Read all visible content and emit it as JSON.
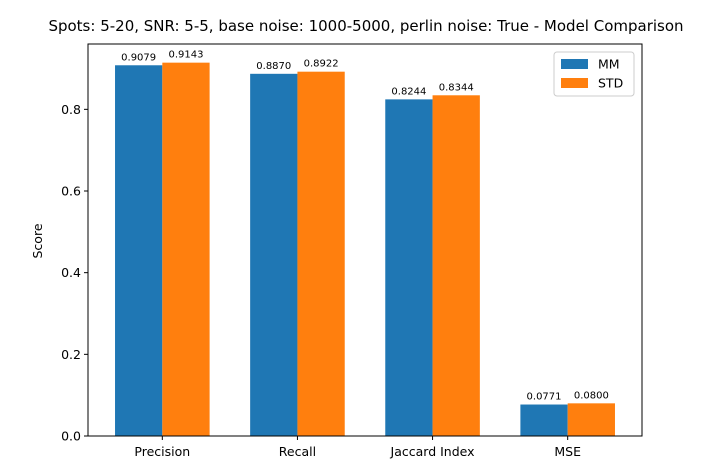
{
  "chart_data": {
    "type": "bar",
    "title": "Spots: 5-20, SNR: 5-5, base noise: 1000-5000, perlin noise: True - Model Comparison",
    "xlabel": "",
    "ylabel": "Score",
    "categories": [
      "Precision",
      "Recall",
      "Jaccard Index",
      "MSE"
    ],
    "series": [
      {
        "name": "MM",
        "values": [
          0.9079,
          0.887,
          0.8244,
          0.0771
        ],
        "labels": [
          "0.9079",
          "0.8870",
          "0.8244",
          "0.0771"
        ],
        "color": "#1f77b4"
      },
      {
        "name": "STD",
        "values": [
          0.9143,
          0.8922,
          0.8344,
          0.08
        ],
        "labels": [
          "0.9143",
          "0.8922",
          "0.8344",
          "0.0800"
        ],
        "color": "#ff7f0e"
      }
    ],
    "yticks": [
      0.0,
      0.2,
      0.4,
      0.6,
      0.8
    ],
    "ytick_labels": [
      "0.0",
      "0.2",
      "0.4",
      "0.6",
      "0.8"
    ],
    "ylim": [
      0,
      0.96
    ],
    "grid": false,
    "legend_position": "top-right"
  }
}
